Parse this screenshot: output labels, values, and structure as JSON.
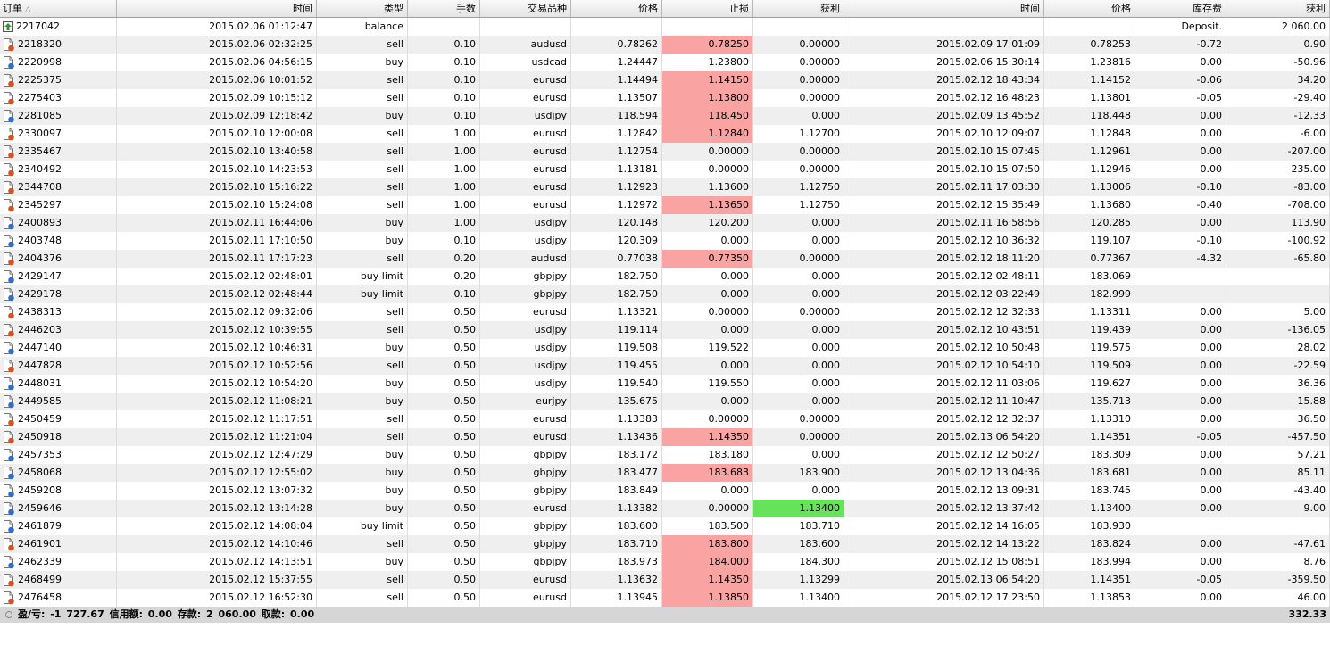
{
  "table": {
    "columns": [
      "订单",
      "时间",
      "类型",
      "手数",
      "交易品种",
      "价格",
      "止损",
      "获利",
      "时间",
      "价格",
      "库存费",
      "获利"
    ],
    "rows": [
      {
        "cells": [
          "2217042",
          "2015.02.06 01:12:47",
          "balance",
          null,
          null,
          null,
          null,
          null,
          null,
          null,
          "Deposit.",
          "2 060.00"
        ]
      },
      {
        "cells": [
          "2218320",
          "2015.02.06 02:32:25",
          "sell",
          "0.10",
          "audusd",
          "0.78262",
          "0.78250",
          "0.00000",
          "2015.02.09 17:01:09",
          "0.78253",
          "-0.72",
          "0.90"
        ],
        "highlights": [
          {
            "column": 6,
            "color": "#f9a3a3"
          }
        ]
      },
      {
        "cells": [
          "2220998",
          "2015.02.06 04:56:15",
          "buy",
          "0.10",
          "usdcad",
          "1.24447",
          "1.23800",
          "0.00000",
          "2015.02.06 15:30:14",
          "1.23816",
          "0.00",
          "-50.96"
        ]
      },
      {
        "cells": [
          "2225375",
          "2015.02.06 10:01:52",
          "sell",
          "0.10",
          "eurusd",
          "1.14494",
          "1.14150",
          "0.00000",
          "2015.02.12 18:43:34",
          "1.14152",
          "-0.06",
          "34.20"
        ],
        "highlights": [
          {
            "column": 6,
            "color": "#f9a3a3"
          }
        ]
      },
      {
        "cells": [
          "2275403",
          "2015.02.09 10:15:12",
          "sell",
          "0.10",
          "eurusd",
          "1.13507",
          "1.13800",
          "0.00000",
          "2015.02.12 16:48:23",
          "1.13801",
          "-0.05",
          "-29.40"
        ],
        "highlights": [
          {
            "column": 6,
            "color": "#f9a3a3"
          }
        ]
      },
      {
        "cells": [
          "2281085",
          "2015.02.09 12:18:42",
          "buy",
          "0.10",
          "usdjpy",
          "118.594",
          "118.450",
          "0.000",
          "2015.02.09 13:45:52",
          "118.448",
          "0.00",
          "-12.33"
        ],
        "highlights": [
          {
            "column": 6,
            "color": "#f9a3a3"
          }
        ]
      },
      {
        "cells": [
          "2330097",
          "2015.02.10 12:00:08",
          "sell",
          "1.00",
          "eurusd",
          "1.12842",
          "1.12840",
          "1.12700",
          "2015.02.10 12:09:07",
          "1.12848",
          "0.00",
          "-6.00"
        ],
        "highlights": [
          {
            "column": 6,
            "color": "#f9a3a3"
          }
        ]
      },
      {
        "cells": [
          "2335467",
          "2015.02.10 13:40:58",
          "sell",
          "1.00",
          "eurusd",
          "1.12754",
          "0.00000",
          "0.00000",
          "2015.02.10 15:07:45",
          "1.12961",
          "0.00",
          "-207.00"
        ]
      },
      {
        "cells": [
          "2340492",
          "2015.02.10 14:23:53",
          "sell",
          "1.00",
          "eurusd",
          "1.13181",
          "0.00000",
          "0.00000",
          "2015.02.10 15:07:50",
          "1.12946",
          "0.00",
          "235.00"
        ]
      },
      {
        "cells": [
          "2344708",
          "2015.02.10 15:16:22",
          "sell",
          "1.00",
          "eurusd",
          "1.12923",
          "1.13600",
          "1.12750",
          "2015.02.11 17:03:30",
          "1.13006",
          "-0.10",
          "-83.00"
        ]
      },
      {
        "cells": [
          "2345297",
          "2015.02.10 15:24:08",
          "sell",
          "1.00",
          "eurusd",
          "1.12972",
          "1.13650",
          "1.12750",
          "2015.02.12 15:35:49",
          "1.13680",
          "-0.40",
          "-708.00"
        ],
        "highlights": [
          {
            "column": 6,
            "color": "#f9a3a3"
          }
        ]
      },
      {
        "cells": [
          "2400893",
          "2015.02.11 16:44:06",
          "buy",
          "1.00",
          "usdjpy",
          "120.148",
          "120.200",
          "0.000",
          "2015.02.11 16:58:56",
          "120.285",
          "0.00",
          "113.90"
        ]
      },
      {
        "cells": [
          "2403748",
          "2015.02.11 17:10:50",
          "buy",
          "0.10",
          "usdjpy",
          "120.309",
          "0.000",
          "0.000",
          "2015.02.12 10:36:32",
          "119.107",
          "-0.10",
          "-100.92"
        ]
      },
      {
        "cells": [
          "2404376",
          "2015.02.11 17:17:23",
          "sell",
          "0.20",
          "audusd",
          "0.77038",
          "0.77350",
          "0.00000",
          "2015.02.12 18:11:20",
          "0.77367",
          "-4.32",
          "-65.80"
        ],
        "highlights": [
          {
            "column": 6,
            "color": "#f9a3a3"
          }
        ]
      },
      {
        "cells": [
          "2429147",
          "2015.02.12 02:48:01",
          "buy limit",
          "0.20",
          "gbpjpy",
          "182.750",
          "0.000",
          "0.000",
          "2015.02.12 02:48:11",
          "183.069",
          null,
          null
        ]
      },
      {
        "cells": [
          "2429178",
          "2015.02.12 02:48:44",
          "buy limit",
          "0.10",
          "gbpjpy",
          "182.750",
          "0.000",
          "0.000",
          "2015.02.12 03:22:49",
          "182.999",
          null,
          null
        ]
      },
      {
        "cells": [
          "2438313",
          "2015.02.12 09:32:06",
          "sell",
          "0.50",
          "eurusd",
          "1.13321",
          "0.00000",
          "0.00000",
          "2015.02.12 12:32:33",
          "1.13311",
          "0.00",
          "5.00"
        ]
      },
      {
        "cells": [
          "2446203",
          "2015.02.12 10:39:55",
          "sell",
          "0.50",
          "usdjpy",
          "119.114",
          "0.000",
          "0.000",
          "2015.02.12 10:43:51",
          "119.439",
          "0.00",
          "-136.05"
        ]
      },
      {
        "cells": [
          "2447140",
          "2015.02.12 10:46:31",
          "buy",
          "0.50",
          "usdjpy",
          "119.508",
          "119.522",
          "0.000",
          "2015.02.12 10:50:48",
          "119.575",
          "0.00",
          "28.02"
        ]
      },
      {
        "cells": [
          "2447828",
          "2015.02.12 10:52:56",
          "sell",
          "0.50",
          "usdjpy",
          "119.455",
          "0.000",
          "0.000",
          "2015.02.12 10:54:10",
          "119.509",
          "0.00",
          "-22.59"
        ]
      },
      {
        "cells": [
          "2448031",
          "2015.02.12 10:54:20",
          "buy",
          "0.50",
          "usdjpy",
          "119.540",
          "119.550",
          "0.000",
          "2015.02.12 11:03:06",
          "119.627",
          "0.00",
          "36.36"
        ]
      },
      {
        "cells": [
          "2449585",
          "2015.02.12 11:08:21",
          "buy",
          "0.50",
          "eurjpy",
          "135.675",
          "0.000",
          "0.000",
          "2015.02.12 11:10:47",
          "135.713",
          "0.00",
          "15.88"
        ]
      },
      {
        "cells": [
          "2450459",
          "2015.02.12 11:17:51",
          "sell",
          "0.50",
          "eurusd",
          "1.13383",
          "0.00000",
          "0.00000",
          "2015.02.12 12:32:37",
          "1.13310",
          "0.00",
          "36.50"
        ]
      },
      {
        "cells": [
          "2450918",
          "2015.02.12 11:21:04",
          "sell",
          "0.50",
          "eurusd",
          "1.13436",
          "1.14350",
          "0.00000",
          "2015.02.13 06:54:20",
          "1.14351",
          "-0.05",
          "-457.50"
        ],
        "highlights": [
          {
            "column": 6,
            "color": "#f9a3a3"
          }
        ]
      },
      {
        "cells": [
          "2457353",
          "2015.02.12 12:47:29",
          "buy",
          "0.50",
          "gbpjpy",
          "183.172",
          "183.180",
          "0.000",
          "2015.02.12 12:50:27",
          "183.309",
          "0.00",
          "57.21"
        ]
      },
      {
        "cells": [
          "2458068",
          "2015.02.12 12:55:02",
          "buy",
          "0.50",
          "gbpjpy",
          "183.477",
          "183.683",
          "183.900",
          "2015.02.12 13:04:36",
          "183.681",
          "0.00",
          "85.11"
        ],
        "highlights": [
          {
            "column": 6,
            "color": "#f9a3a3"
          }
        ]
      },
      {
        "cells": [
          "2459208",
          "2015.02.12 13:07:32",
          "buy",
          "0.50",
          "gbpjpy",
          "183.849",
          "0.000",
          "0.000",
          "2015.02.12 13:09:31",
          "183.745",
          "0.00",
          "-43.40"
        ]
      },
      {
        "cells": [
          "2459646",
          "2015.02.12 13:14:28",
          "buy",
          "0.50",
          "eurusd",
          "1.13382",
          "0.00000",
          "1.13400",
          "2015.02.12 13:37:42",
          "1.13400",
          "0.00",
          "9.00"
        ],
        "highlights": [
          {
            "column": 7,
            "color": "#66e35a"
          }
        ]
      },
      {
        "cells": [
          "2461879",
          "2015.02.12 14:08:04",
          "buy limit",
          "0.50",
          "gbpjpy",
          "183.600",
          "183.500",
          "183.710",
          "2015.02.12 14:16:05",
          "183.930",
          null,
          null
        ]
      },
      {
        "cells": [
          "2461901",
          "2015.02.12 14:10:46",
          "sell",
          "0.50",
          "gbpjpy",
          "183.710",
          "183.800",
          "183.600",
          "2015.02.12 14:13:22",
          "183.824",
          "0.00",
          "-47.61"
        ],
        "highlights": [
          {
            "column": 6,
            "color": "#f9a3a3"
          }
        ]
      },
      {
        "cells": [
          "2462339",
          "2015.02.12 14:13:51",
          "buy",
          "0.50",
          "gbpjpy",
          "183.973",
          "184.000",
          "184.300",
          "2015.02.12 15:08:51",
          "183.994",
          "0.00",
          "8.76"
        ],
        "highlights": [
          {
            "column": 6,
            "color": "#f9a3a3"
          }
        ]
      },
      {
        "cells": [
          "2468499",
          "2015.02.12 15:37:55",
          "sell",
          "0.50",
          "eurusd",
          "1.13632",
          "1.14350",
          "1.13299",
          "2015.02.13 06:54:20",
          "1.14351",
          "-0.05",
          "-359.50"
        ],
        "highlights": [
          {
            "column": 6,
            "color": "#f9a3a3"
          }
        ]
      },
      {
        "cells": [
          "2476458",
          "2015.02.12 16:52:30",
          "sell",
          "0.50",
          "eurusd",
          "1.13945",
          "1.13850",
          "1.13400",
          "2015.02.12 17:23:50",
          "1.13853",
          "0.00",
          "46.00"
        ],
        "highlights": [
          {
            "column": 6,
            "color": "#f9a3a3"
          }
        ]
      }
    ]
  },
  "footer": {
    "summary": "盈/亏: -1 727.67 信用额: 0.00 存款: 2 060.00 取款: 0.00",
    "total": "332.33"
  }
}
